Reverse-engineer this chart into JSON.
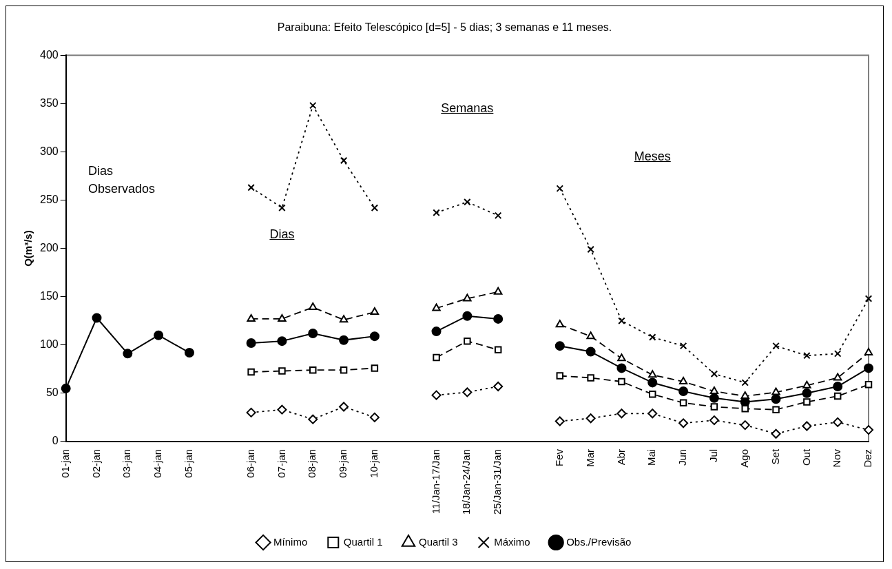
{
  "chart_data": {
    "type": "line",
    "title": "Paraibuna: Efeito Telescópico [d=5] - 5 dias; 3 semanas e 11 meses.",
    "ylabel": "Q(m³/s)",
    "categories": [
      "01-jan",
      "02-jan",
      "03-jan",
      "04-jan",
      "05-jan",
      null,
      "06-jan",
      "07-jan",
      "08-jan",
      "09-jan",
      "10-jan",
      null,
      "11/Jan-17/Jan",
      "18/Jan-24/Jan",
      "25/Jan-31/Jan",
      null,
      "Fev",
      "Mar",
      "Abr",
      "Mai",
      "Jun",
      "Jul",
      "Ago",
      "Set",
      "Out",
      "Nov",
      "Dez"
    ],
    "series": [
      {
        "name": "Mínimo",
        "color": "#000000",
        "marker": "diamond",
        "line_style": "dotted",
        "values": [
          null,
          null,
          null,
          null,
          null,
          null,
          30,
          33,
          23,
          36,
          25,
          null,
          48,
          51,
          57,
          null,
          21,
          24,
          29,
          29,
          19,
          22,
          17,
          8,
          16,
          20,
          12
        ]
      },
      {
        "name": "Quartil 1",
        "color": "#000000",
        "marker": "square",
        "line_style": "dashed",
        "values": [
          null,
          null,
          null,
          null,
          null,
          null,
          72,
          73,
          74,
          74,
          76,
          null,
          87,
          104,
          95,
          null,
          68,
          66,
          62,
          49,
          40,
          36,
          34,
          33,
          41,
          47,
          59
        ]
      },
      {
        "name": "Quartil 3",
        "color": "#000000",
        "marker": "triangle",
        "line_style": "dashed",
        "values": [
          null,
          null,
          null,
          null,
          null,
          null,
          127,
          127,
          139,
          126,
          134,
          null,
          138,
          148,
          155,
          null,
          121,
          109,
          86,
          69,
          62,
          52,
          47,
          51,
          58,
          66,
          92
        ]
      },
      {
        "name": "Máximo",
        "color": "#000000",
        "marker": "cross",
        "line_style": "dotted",
        "values": [
          null,
          null,
          null,
          null,
          null,
          null,
          263,
          242,
          348,
          291,
          242,
          null,
          237,
          248,
          234,
          null,
          262,
          199,
          125,
          108,
          99,
          70,
          61,
          99,
          89,
          91,
          148
        ]
      },
      {
        "name": "Obs./Previsão",
        "color": "#000000",
        "marker": "circle",
        "line_style": "solid",
        "values": [
          55,
          128,
          91,
          110,
          92,
          null,
          102,
          104,
          112,
          105,
          109,
          null,
          114,
          130,
          127,
          null,
          99,
          93,
          76,
          61,
          52,
          45,
          41,
          44,
          50,
          57,
          76
        ]
      }
    ],
    "ylim": [
      0,
      400
    ],
    "yticks": [
      0,
      50,
      100,
      150,
      200,
      250,
      300,
      350,
      400
    ],
    "grid": false,
    "legend": "bottom",
    "annotations": [
      "Dias Observados",
      "Dias",
      "Semanas",
      "Meses"
    ]
  }
}
